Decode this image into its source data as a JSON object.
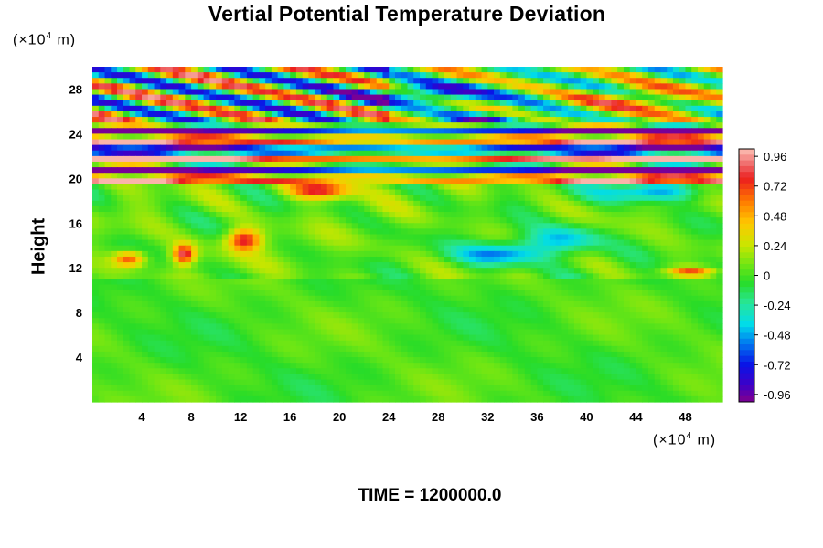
{
  "chart_data": {
    "type": "heatmap",
    "title": "Vertial Potential Temperature Deviation",
    "xlabel": "",
    "ylabel": "Height",
    "x_unit": {
      "prefix": "(×10",
      "exp": "4",
      "suffix": " m)"
    },
    "y_unit": {
      "prefix": "(×10",
      "exp": "4",
      "suffix": " m)"
    },
    "xlim": [
      0,
      51
    ],
    "ylim": [
      0,
      30
    ],
    "x_ticks": [
      4,
      8,
      12,
      16,
      20,
      24,
      28,
      32,
      36,
      40,
      44,
      48
    ],
    "y_ticks": [
      4,
      8,
      12,
      16,
      20,
      24,
      28
    ],
    "colorbar": {
      "range": [
        -1.02,
        1.02
      ],
      "tick_values": [
        0.96,
        0.72,
        0.48,
        0.24,
        0,
        -0.24,
        -0.48,
        -0.72,
        -0.96
      ],
      "tick_labels": [
        "0.96",
        "0.72",
        "0.48",
        "0.24",
        "0",
        "-0.24",
        "-0.48",
        "-0.72",
        "-0.96"
      ]
    },
    "footer": "TIME = 1200000.0",
    "features": [
      {
        "description": "alternating high/low bands (stratified layer)",
        "y_range": [
          19.5,
          25
        ]
      },
      {
        "description": "wave-like streaks",
        "y_range": [
          24,
          29
        ]
      },
      {
        "description": "warm anomalies",
        "y_range": [
          12,
          19
        ]
      },
      {
        "description": "weak anomalies near zero",
        "y_range": [
          0,
          11
        ]
      }
    ]
  }
}
